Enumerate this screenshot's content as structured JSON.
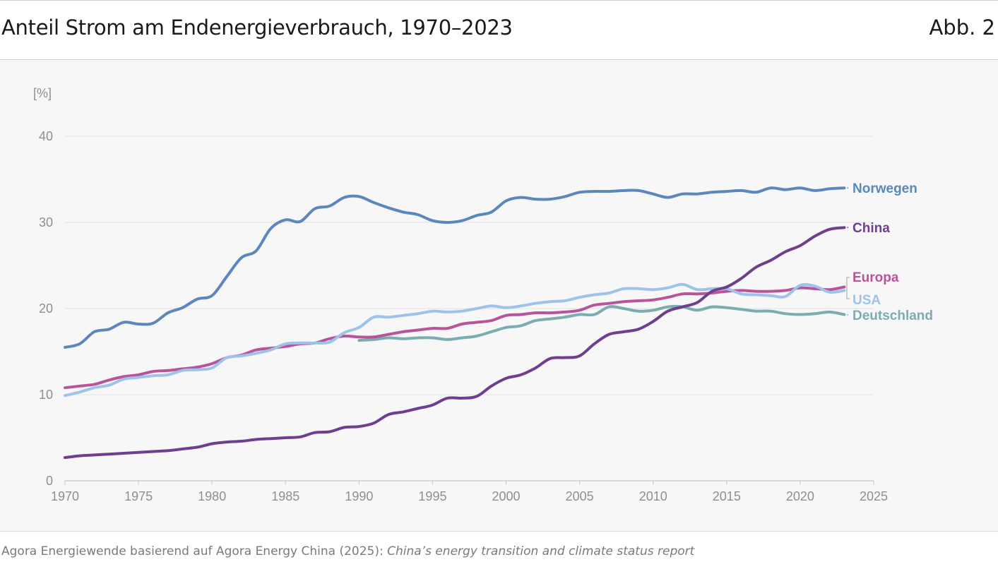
{
  "header": {
    "title": "Anteil Strom am Endenergieverbrauch, 1970–2023",
    "figure_number": "Abb. 2"
  },
  "source": {
    "prefix": "Agora Energiewende basierend auf Agora Energy China (2025): ",
    "report": "China’s energy transition and climate status report"
  },
  "colors": {
    "Norwegen": "#5b87bd",
    "China": "#6f3f8e",
    "Europa": "#b8549a",
    "USA": "#9dc3ea",
    "Deutschland": "#7aacb2",
    "axis": "#8f8f8f",
    "grid": "#e6e6e6"
  },
  "chart_data": {
    "type": "line",
    "title": "Anteil Strom am Endenergieverbrauch, 1970–2023",
    "ylabel": "[%]",
    "xlabel": "",
    "xlim": [
      1970,
      2025
    ],
    "ylim": [
      0,
      40
    ],
    "x_ticks": [
      1970,
      1975,
      1980,
      1985,
      1990,
      1995,
      2000,
      2005,
      2010,
      2015,
      2020,
      2025
    ],
    "y_ticks": [
      0,
      10,
      20,
      30,
      40
    ],
    "grid": true,
    "series": [
      {
        "name": "Norwegen",
        "label": "Norwegen",
        "x": [
          1970,
          1971,
          1972,
          1973,
          1974,
          1975,
          1976,
          1977,
          1978,
          1979,
          1980,
          1981,
          1982,
          1983,
          1984,
          1985,
          1986,
          1987,
          1988,
          1989,
          1990,
          1991,
          1992,
          1993,
          1994,
          1995,
          1996,
          1997,
          1998,
          1999,
          2000,
          2001,
          2002,
          2003,
          2004,
          2005,
          2006,
          2007,
          2008,
          2009,
          2010,
          2011,
          2012,
          2013,
          2014,
          2015,
          2016,
          2017,
          2018,
          2019,
          2020,
          2021,
          2022,
          2023
        ],
        "values": [
          15.5,
          15.9,
          17.3,
          17.6,
          18.4,
          18.2,
          18.3,
          19.5,
          20.1,
          21.1,
          21.5,
          23.7,
          25.9,
          26.7,
          29.3,
          30.3,
          30.1,
          31.6,
          31.9,
          32.9,
          33.0,
          32.3,
          31.7,
          31.2,
          30.9,
          30.2,
          30.0,
          30.2,
          30.8,
          31.2,
          32.5,
          32.9,
          32.7,
          32.7,
          33.0,
          33.5,
          33.6,
          33.6,
          33.7,
          33.7,
          33.3,
          32.9,
          33.3,
          33.3,
          33.5,
          33.6,
          33.7,
          33.5,
          34.0,
          33.8,
          34.0,
          33.7,
          33.9,
          34.0
        ]
      },
      {
        "name": "China",
        "label": "China",
        "x": [
          1970,
          1971,
          1972,
          1973,
          1974,
          1975,
          1976,
          1977,
          1978,
          1979,
          1980,
          1981,
          1982,
          1983,
          1984,
          1985,
          1986,
          1987,
          1988,
          1989,
          1990,
          1991,
          1992,
          1993,
          1994,
          1995,
          1996,
          1997,
          1998,
          1999,
          2000,
          2001,
          2002,
          2003,
          2004,
          2005,
          2006,
          2007,
          2008,
          2009,
          2010,
          2011,
          2012,
          2013,
          2014,
          2015,
          2016,
          2017,
          2018,
          2019,
          2020,
          2021,
          2022,
          2023
        ],
        "values": [
          2.7,
          2.9,
          3.0,
          3.1,
          3.2,
          3.3,
          3.4,
          3.5,
          3.7,
          3.9,
          4.3,
          4.5,
          4.6,
          4.8,
          4.9,
          5.0,
          5.1,
          5.6,
          5.7,
          6.2,
          6.3,
          6.7,
          7.7,
          8.0,
          8.4,
          8.8,
          9.6,
          9.6,
          9.8,
          11.0,
          11.9,
          12.3,
          13.1,
          14.2,
          14.3,
          14.5,
          15.9,
          17.0,
          17.3,
          17.6,
          18.5,
          19.7,
          20.2,
          20.7,
          22.0,
          22.5,
          23.5,
          24.8,
          25.6,
          26.6,
          27.3,
          28.4,
          29.2,
          29.4
        ]
      },
      {
        "name": "Europa",
        "label": "Europa",
        "x": [
          1970,
          1971,
          1972,
          1973,
          1974,
          1975,
          1976,
          1977,
          1978,
          1979,
          1980,
          1981,
          1982,
          1983,
          1984,
          1985,
          1986,
          1987,
          1988,
          1989,
          1990,
          1991,
          1992,
          1993,
          1994,
          1995,
          1996,
          1997,
          1998,
          1999,
          2000,
          2001,
          2002,
          2003,
          2004,
          2005,
          2006,
          2007,
          2008,
          2009,
          2010,
          2011,
          2012,
          2013,
          2014,
          2015,
          2016,
          2017,
          2018,
          2019,
          2020,
          2021,
          2022,
          2023
        ],
        "values": [
          10.8,
          11.0,
          11.2,
          11.7,
          12.1,
          12.3,
          12.7,
          12.8,
          13.0,
          13.2,
          13.6,
          14.3,
          14.6,
          15.2,
          15.4,
          15.6,
          15.9,
          16.0,
          16.5,
          16.8,
          16.7,
          16.7,
          17.0,
          17.3,
          17.5,
          17.7,
          17.7,
          18.2,
          18.4,
          18.6,
          19.2,
          19.3,
          19.5,
          19.5,
          19.6,
          19.8,
          20.4,
          20.6,
          20.8,
          20.9,
          21.0,
          21.3,
          21.7,
          21.7,
          21.8,
          22.0,
          22.1,
          22.0,
          22.0,
          22.1,
          22.4,
          22.3,
          22.2,
          22.5
        ]
      },
      {
        "name": "USA",
        "label": "USA",
        "x": [
          1970,
          1971,
          1972,
          1973,
          1974,
          1975,
          1976,
          1977,
          1978,
          1979,
          1980,
          1981,
          1982,
          1983,
          1984,
          1985,
          1986,
          1987,
          1988,
          1989,
          1990,
          1991,
          1992,
          1993,
          1994,
          1995,
          1996,
          1997,
          1998,
          1999,
          2000,
          2001,
          2002,
          2003,
          2004,
          2005,
          2006,
          2007,
          2008,
          2009,
          2010,
          2011,
          2012,
          2013,
          2014,
          2015,
          2016,
          2017,
          2018,
          2019,
          2020,
          2021,
          2022,
          2023
        ],
        "values": [
          9.9,
          10.3,
          10.8,
          11.1,
          11.8,
          12.0,
          12.2,
          12.3,
          12.8,
          12.9,
          13.1,
          14.3,
          14.5,
          14.8,
          15.2,
          15.9,
          16.0,
          16.0,
          16.1,
          17.2,
          17.8,
          19.0,
          19.0,
          19.2,
          19.4,
          19.7,
          19.6,
          19.7,
          20.0,
          20.3,
          20.1,
          20.3,
          20.6,
          20.8,
          20.9,
          21.3,
          21.6,
          21.8,
          22.3,
          22.3,
          22.2,
          22.4,
          22.8,
          22.2,
          22.3,
          22.3,
          21.7,
          21.6,
          21.5,
          21.4,
          22.7,
          22.6,
          21.9,
          22.1
        ]
      },
      {
        "name": "Deutschland",
        "label": "Deutschland",
        "x": [
          1990,
          1991,
          1992,
          1993,
          1994,
          1995,
          1996,
          1997,
          1998,
          1999,
          2000,
          2001,
          2002,
          2003,
          2004,
          2005,
          2006,
          2007,
          2008,
          2009,
          2010,
          2011,
          2012,
          2013,
          2014,
          2015,
          2016,
          2017,
          2018,
          2019,
          2020,
          2021,
          2022,
          2023
        ],
        "values": [
          16.3,
          16.4,
          16.6,
          16.5,
          16.6,
          16.6,
          16.4,
          16.6,
          16.8,
          17.3,
          17.8,
          18.0,
          18.6,
          18.8,
          19.0,
          19.3,
          19.3,
          20.2,
          20.0,
          19.7,
          19.8,
          20.2,
          20.2,
          19.8,
          20.2,
          20.1,
          19.9,
          19.7,
          19.7,
          19.4,
          19.3,
          19.4,
          19.6,
          19.3
        ]
      }
    ]
  }
}
